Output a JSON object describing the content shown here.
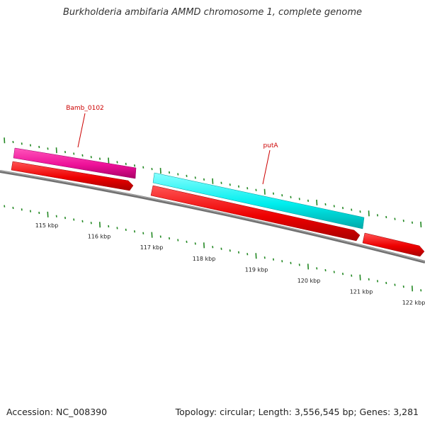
{
  "title": "Burkholderia ambifaria AMMD chromosome 1, complete genome",
  "footer": {
    "accession": "Accession: NC_008390",
    "summary": "Topology: circular; Length: 3,556,545 bp; Genes: 3,281"
  },
  "colors": {
    "backbone": "#808080",
    "cds": "#ee0000",
    "gene_magenta": "#ee1199",
    "gene_cyan": "#00eeee",
    "ticks": "#228822",
    "label": "#cc0000"
  },
  "tick_labels": [
    "115 kbp",
    "116 kbp",
    "117 kbp",
    "118 kbp",
    "119 kbp",
    "120 kbp",
    "121 kbp",
    "122 kbp"
  ],
  "gene_labels": [
    "Bamb_0102",
    "putA"
  ]
}
